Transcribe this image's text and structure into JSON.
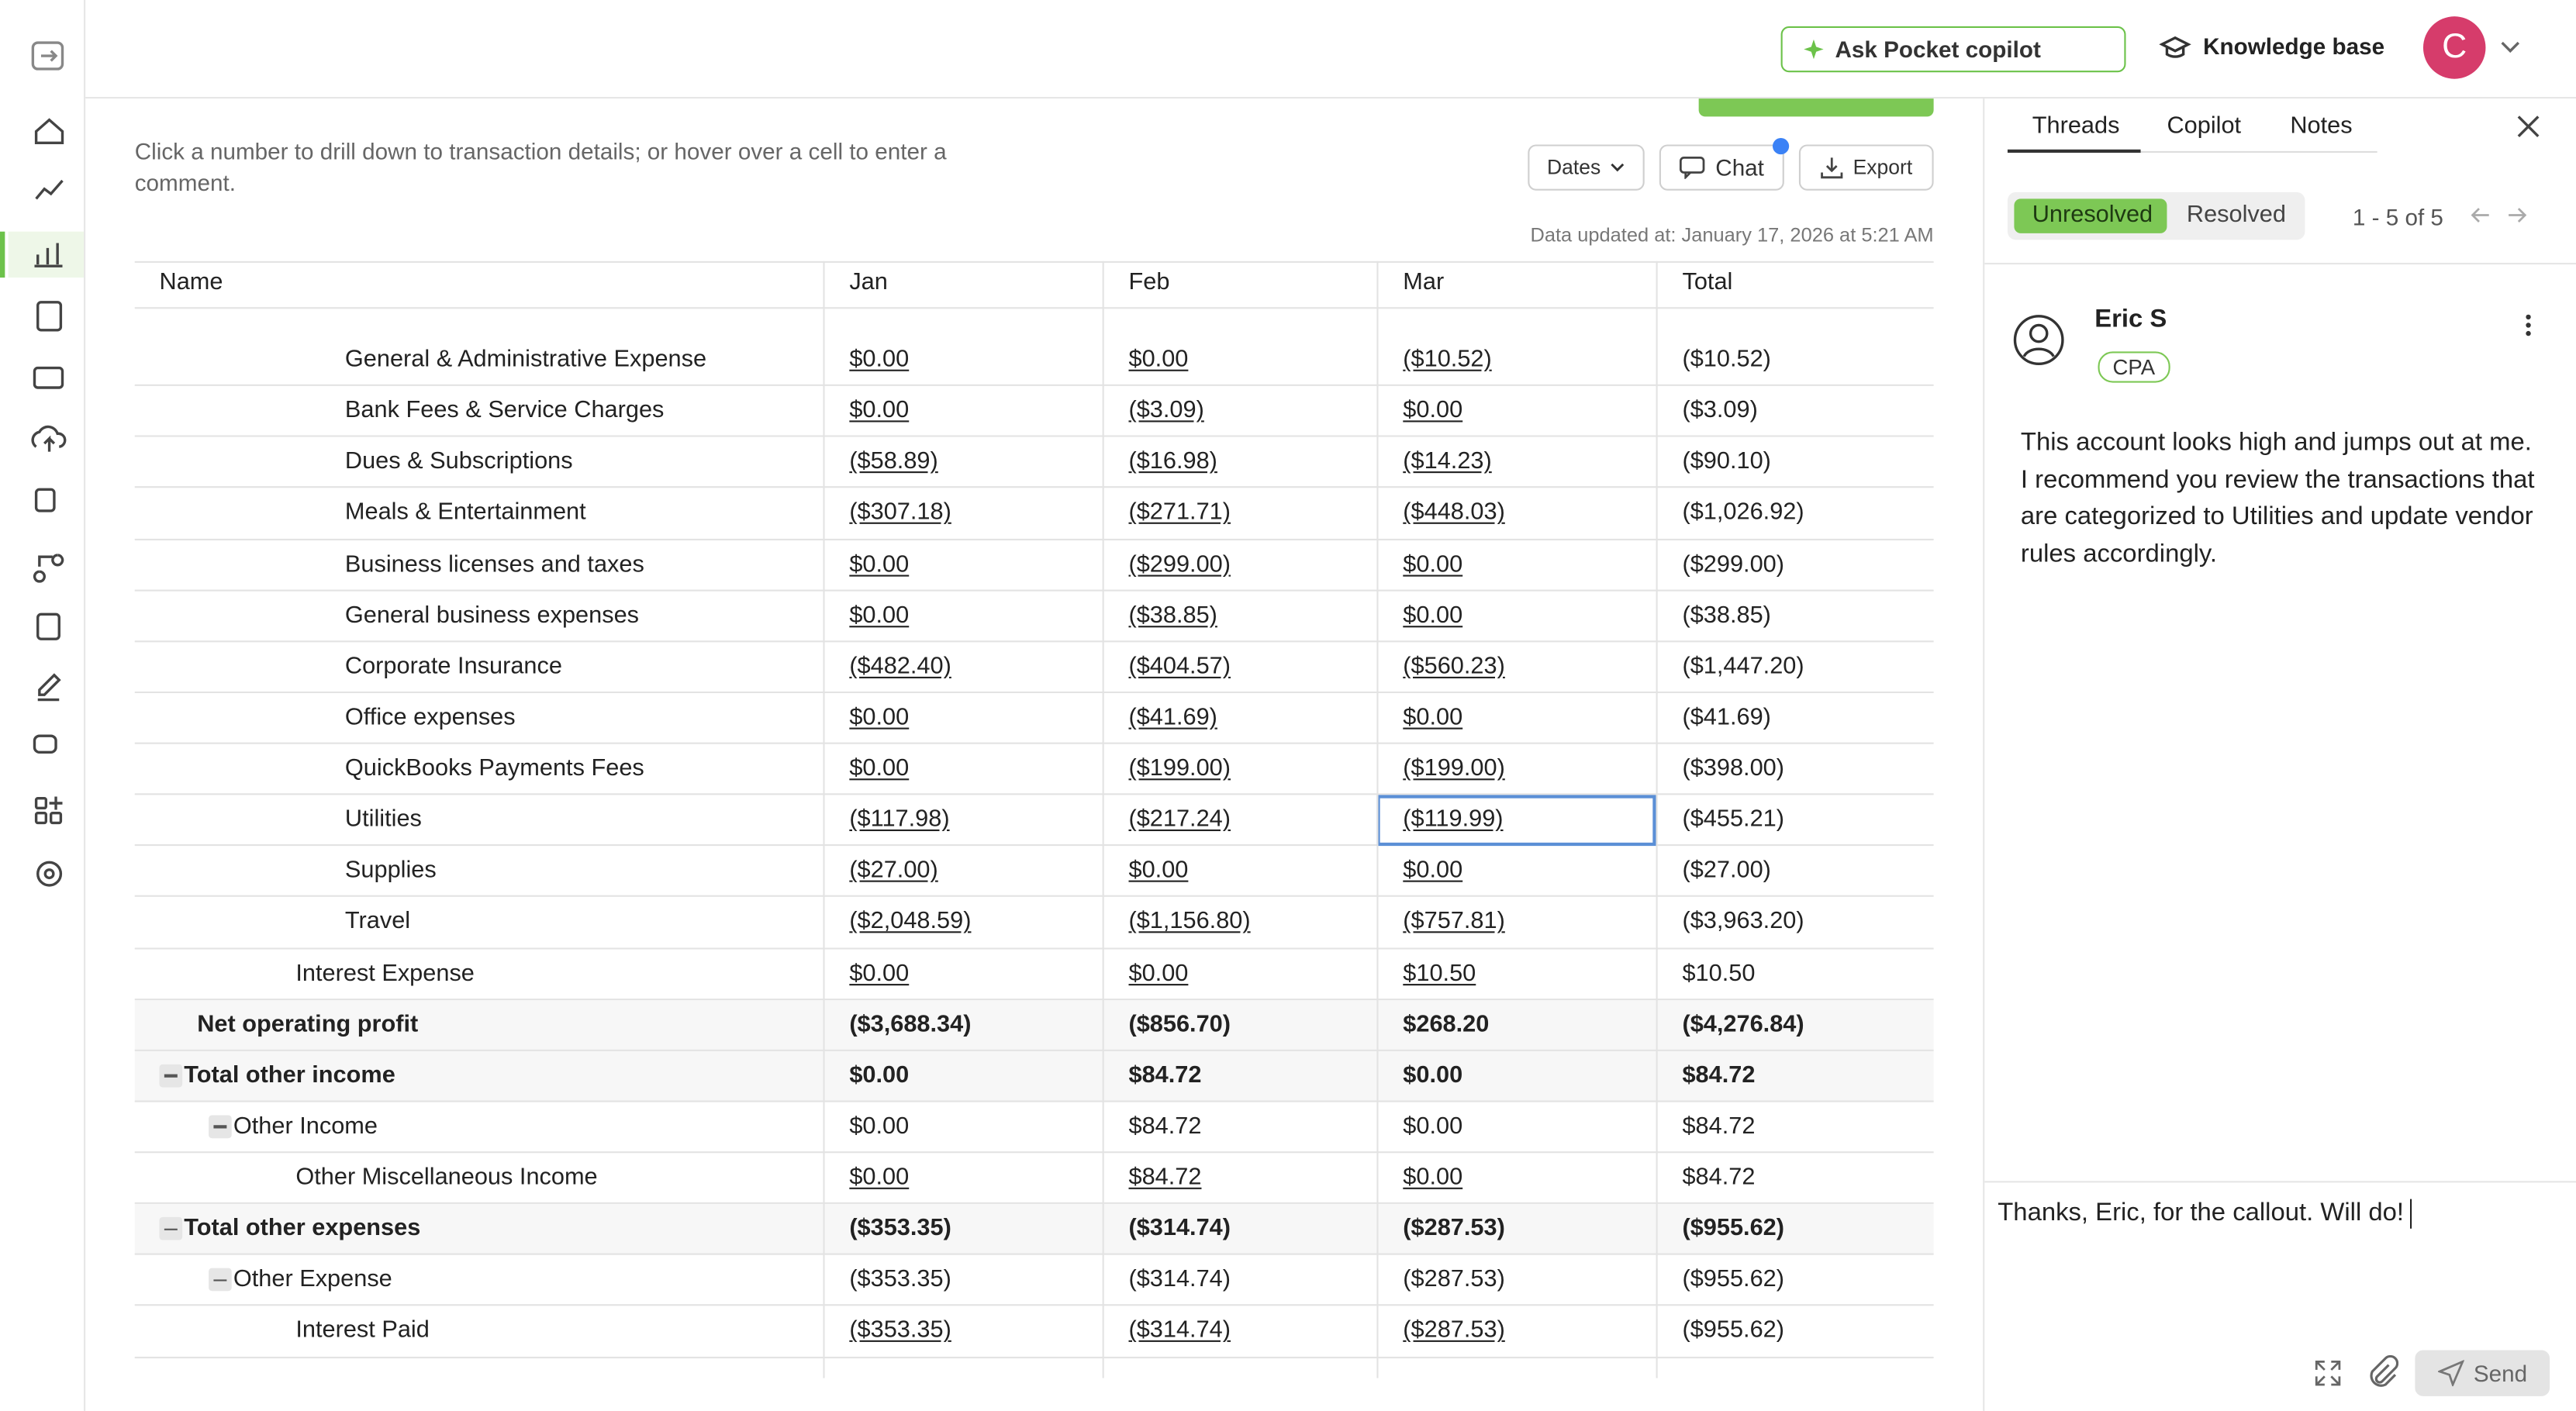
{
  "topbar": {
    "copilot_button": "Ask Pocket copilot",
    "knowledge_base": "Knowledge base",
    "avatar_initial": "C"
  },
  "report": {
    "instructions": "Click a number to drill down to transaction details; or hover over a cell to enter a comment.",
    "buttons": {
      "dates": "Dates",
      "chat": "Chat",
      "export": "Export"
    },
    "updated": "Data updated at: January 17, 2026 at 5:21 AM",
    "table": {
      "columns": [
        "Name",
        "Jan",
        "Feb",
        "Mar",
        "Total"
      ],
      "selected": {
        "row": 9,
        "col": 3
      },
      "rows": [
        {
          "name": "General & Administrative Expense",
          "depth": 4,
          "linked": true,
          "cells": [
            "$0.00",
            "$0.00",
            "($10.52)",
            "($10.52)"
          ]
        },
        {
          "name": "Bank Fees & Service Charges",
          "depth": 4,
          "linked": true,
          "cells": [
            "$0.00",
            "($3.09)",
            "$0.00",
            "($3.09)"
          ]
        },
        {
          "name": "Dues & Subscriptions",
          "depth": 4,
          "linked": true,
          "cells": [
            "($58.89)",
            "($16.98)",
            "($14.23)",
            "($90.10)"
          ]
        },
        {
          "name": "Meals & Entertainment",
          "depth": 4,
          "linked": true,
          "cells": [
            "($307.18)",
            "($271.71)",
            "($448.03)",
            "($1,026.92)"
          ]
        },
        {
          "name": "Business licenses and taxes",
          "depth": 4,
          "linked": true,
          "cells": [
            "$0.00",
            "($299.00)",
            "$0.00",
            "($299.00)"
          ]
        },
        {
          "name": "General business expenses",
          "depth": 4,
          "linked": true,
          "cells": [
            "$0.00",
            "($38.85)",
            "$0.00",
            "($38.85)"
          ]
        },
        {
          "name": "Corporate Insurance",
          "depth": 4,
          "linked": true,
          "cells": [
            "($482.40)",
            "($404.57)",
            "($560.23)",
            "($1,447.20)"
          ]
        },
        {
          "name": "Office expenses",
          "depth": 4,
          "linked": true,
          "cells": [
            "$0.00",
            "($41.69)",
            "$0.00",
            "($41.69)"
          ]
        },
        {
          "name": "QuickBooks Payments Fees",
          "depth": 4,
          "linked": true,
          "cells": [
            "$0.00",
            "($199.00)",
            "($199.00)",
            "($398.00)"
          ]
        },
        {
          "name": "Utilities",
          "depth": 4,
          "linked": true,
          "cells": [
            "($117.98)",
            "($217.24)",
            "($119.99)",
            "($455.21)"
          ]
        },
        {
          "name": "Supplies",
          "depth": 4,
          "linked": true,
          "cells": [
            "($27.00)",
            "$0.00",
            "$0.00",
            "($27.00)"
          ]
        },
        {
          "name": "Travel",
          "depth": 4,
          "linked": true,
          "cells": [
            "($2,048.59)",
            "($1,156.80)",
            "($757.81)",
            "($3,963.20)"
          ]
        },
        {
          "name": "Interest Expense",
          "depth": 3,
          "linked": true,
          "cells": [
            "$0.00",
            "$0.00",
            "$10.50",
            "$10.50"
          ]
        },
        {
          "name": "Net operating profit",
          "depth": 1,
          "bold": true,
          "cells": [
            "($3,688.34)",
            "($856.70)",
            "$268.20",
            "($4,276.84)"
          ]
        },
        {
          "name": "Total other income",
          "depth": 1,
          "bold": true,
          "collapsible": true,
          "cells": [
            "$0.00",
            "$84.72",
            "$0.00",
            "$84.72"
          ]
        },
        {
          "name": "Other Income",
          "depth": 2,
          "collapsible": true,
          "cells": [
            "$0.00",
            "$84.72",
            "$0.00",
            "$84.72"
          ]
        },
        {
          "name": "Other Miscellaneous Income",
          "depth": 3,
          "linked": true,
          "cells": [
            "$0.00",
            "$84.72",
            "$0.00",
            "$84.72"
          ]
        },
        {
          "name": "Total other expenses",
          "depth": 1,
          "bold": true,
          "collapsible": true,
          "cells": [
            "($353.35)",
            "($314.74)",
            "($287.53)",
            "($955.62)"
          ]
        },
        {
          "name": "Other Expense",
          "depth": 2,
          "collapsible": true,
          "cells": [
            "($353.35)",
            "($314.74)",
            "($287.53)",
            "($955.62)"
          ]
        },
        {
          "name": "Interest Paid",
          "depth": 3,
          "linked": true,
          "cells": [
            "($353.35)",
            "($314.74)",
            "($287.53)",
            "($955.62)"
          ]
        }
      ]
    }
  },
  "panel": {
    "tabs": [
      "Threads",
      "Copilot",
      "Notes"
    ],
    "filters": [
      "Unresolved",
      "Resolved"
    ],
    "pagination": "1 - 5 of 5",
    "comment": {
      "author": "Eric S",
      "role": "CPA",
      "text": "This account looks high and jumps out at me. I recommend you review the transactions that are categorized to Utilities and update vendor rules accordingly."
    },
    "reply": "Thanks, Eric, for the callout. Will do!",
    "send": "Send"
  }
}
